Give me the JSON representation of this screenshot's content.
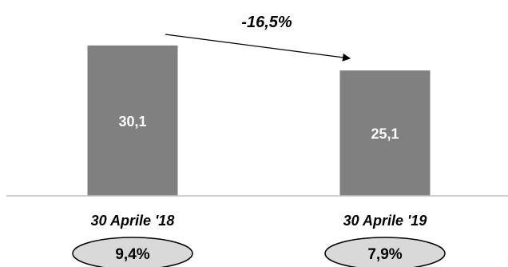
{
  "chart_data": {
    "type": "bar",
    "categories": [
      "30 Aprile '18",
      "30 Aprile '19"
    ],
    "values": [
      30.1,
      25.1
    ],
    "value_labels": [
      "30,1",
      "25,1"
    ],
    "ylim": [
      0,
      40
    ],
    "grid": false,
    "bar_color": "#808080",
    "label_color": "#ffffff",
    "annotations": {
      "change_label": "-16,5%",
      "ellipse_labels": [
        "9,4%",
        "7,9%"
      ],
      "ellipse_fill": "#d9d9d9"
    }
  }
}
